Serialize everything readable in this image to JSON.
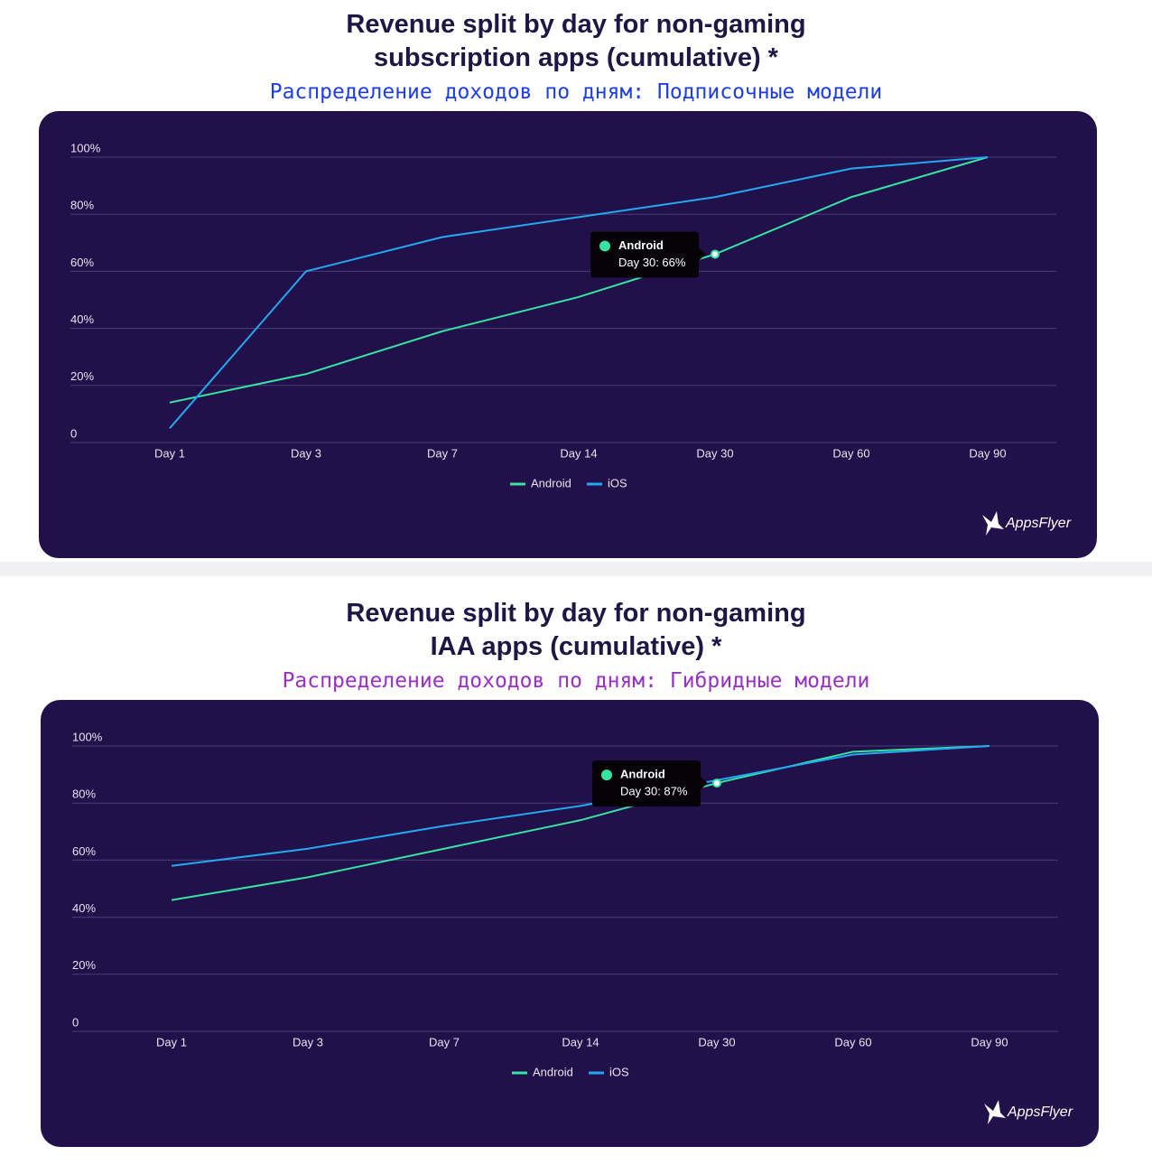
{
  "chart_data": [
    {
      "type": "line",
      "title": "Revenue split by day for non-gaming\nsubscription apps (cumulative) *",
      "subtitle": "Распределение доходов по дням: Подписочные модели",
      "subtitle_color": "#1d3ef0",
      "categories": [
        "Day 1",
        "Day 3",
        "Day 7",
        "Day 14",
        "Day 30",
        "Day 60",
        "Day 90"
      ],
      "series": [
        {
          "name": "Android",
          "color": "#35e4a3",
          "values": [
            14,
            24,
            39,
            51,
            66,
            86,
            100
          ]
        },
        {
          "name": "iOS",
          "color": "#22a9f0",
          "values": [
            5,
            60,
            72,
            79,
            86,
            96,
            100
          ]
        }
      ],
      "ylim": [
        0,
        100
      ],
      "yticks": [
        0,
        {
          "value": 20,
          "label": "20%"
        },
        {
          "value": 40,
          "label": "40%"
        },
        {
          "value": 60,
          "label": "60%"
        },
        {
          "value": 80,
          "label": "80%"
        },
        {
          "value": 100,
          "label": "100%"
        }
      ],
      "grid": true,
      "legend": "bottom",
      "annotation": "Day 30: 66%",
      "logo": "AppsFlyer"
    },
    {
      "type": "line",
      "title": "Revenue split by day for non-gaming\nIAA apps (cumulative) *",
      "subtitle": "Распределение доходов по дням: Гибридные модели",
      "subtitle_color": "#9a2fc8",
      "categories": [
        "Day 1",
        "Day 3",
        "Day 7",
        "Day 14",
        "Day 30",
        "Day 60",
        "Day 90"
      ],
      "series": [
        {
          "name": "Android",
          "color": "#35e4a3",
          "values": [
            46,
            54,
            64,
            74,
            87,
            98,
            100
          ]
        },
        {
          "name": "iOS",
          "color": "#22a9f0",
          "values": [
            58,
            64,
            72,
            79,
            88,
            97,
            100
          ]
        }
      ],
      "ylim": [
        0,
        100
      ],
      "yticks": [
        0,
        {
          "value": 20,
          "label": "20%"
        },
        {
          "value": 40,
          "label": "40%"
        },
        {
          "value": 60,
          "label": "60%"
        },
        {
          "value": 80,
          "label": "80%"
        },
        {
          "value": 100,
          "label": "100%"
        }
      ],
      "grid": true,
      "legend": "bottom",
      "annotation": "Day 30: 87%",
      "logo": "AppsFlyer"
    }
  ]
}
